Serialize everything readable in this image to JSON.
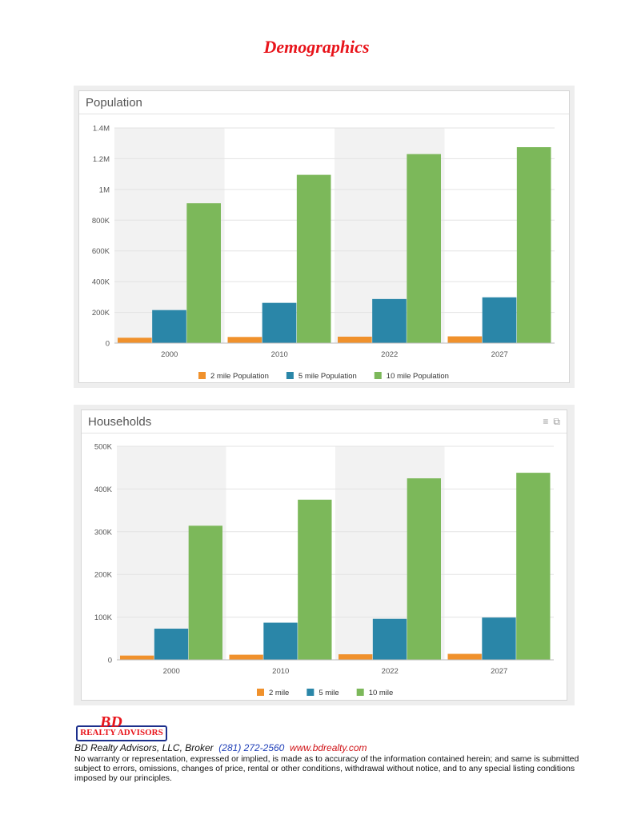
{
  "page": {
    "title": "Demographics"
  },
  "colors": {
    "series1": "#f0912c",
    "series2": "#2a86a8",
    "series3": "#7cb85a",
    "band": "#f2f2f2",
    "title_red": "#e8141b"
  },
  "chart_data": [
    {
      "type": "bar",
      "title": "Population",
      "categories": [
        "2000",
        "2010",
        "2022",
        "2027"
      ],
      "series": [
        {
          "name": "2 mile Population",
          "values": [
            35000,
            40000,
            42000,
            44000
          ]
        },
        {
          "name": "5 mile Population",
          "values": [
            215000,
            262000,
            287000,
            298000
          ]
        },
        {
          "name": "10 mile Population",
          "values": [
            910000,
            1095000,
            1230000,
            1275000
          ]
        }
      ],
      "ylim": [
        0,
        1400000
      ],
      "yticks": [
        "0",
        "200K",
        "400K",
        "600K",
        "800K",
        "1M",
        "1.2M",
        "1.4M"
      ],
      "legend": "bottom",
      "grid": true
    },
    {
      "type": "bar",
      "title": "Households",
      "categories": [
        "2000",
        "2010",
        "2022",
        "2027"
      ],
      "series": [
        {
          "name": "2 mile",
          "values": [
            10000,
            12000,
            13000,
            14000
          ]
        },
        {
          "name": "5 mile",
          "values": [
            73000,
            87000,
            96000,
            99000
          ]
        },
        {
          "name": "10 mile",
          "values": [
            314000,
            375000,
            425000,
            438000
          ]
        }
      ],
      "ylim": [
        0,
        500000
      ],
      "yticks": [
        "0",
        "100K",
        "200K",
        "300K",
        "400K",
        "500K"
      ],
      "legend": "bottom",
      "grid": true
    }
  ],
  "footer": {
    "logo_mark": "BD",
    "logo_text": "REALTY ADVISORS",
    "broker": "BD Realty Advisors, LLC, Broker",
    "phone": "(281) 272-2560",
    "website": "www.bdrealty.com",
    "disclaimer": "No warranty or representation, expressed or implied, is made as to accuracy of the information contained herein; and same is submitted subject to errors, omissions, changes of price, rental or other conditions, withdrawal without notice, and to any special listing conditions imposed by our principles."
  }
}
